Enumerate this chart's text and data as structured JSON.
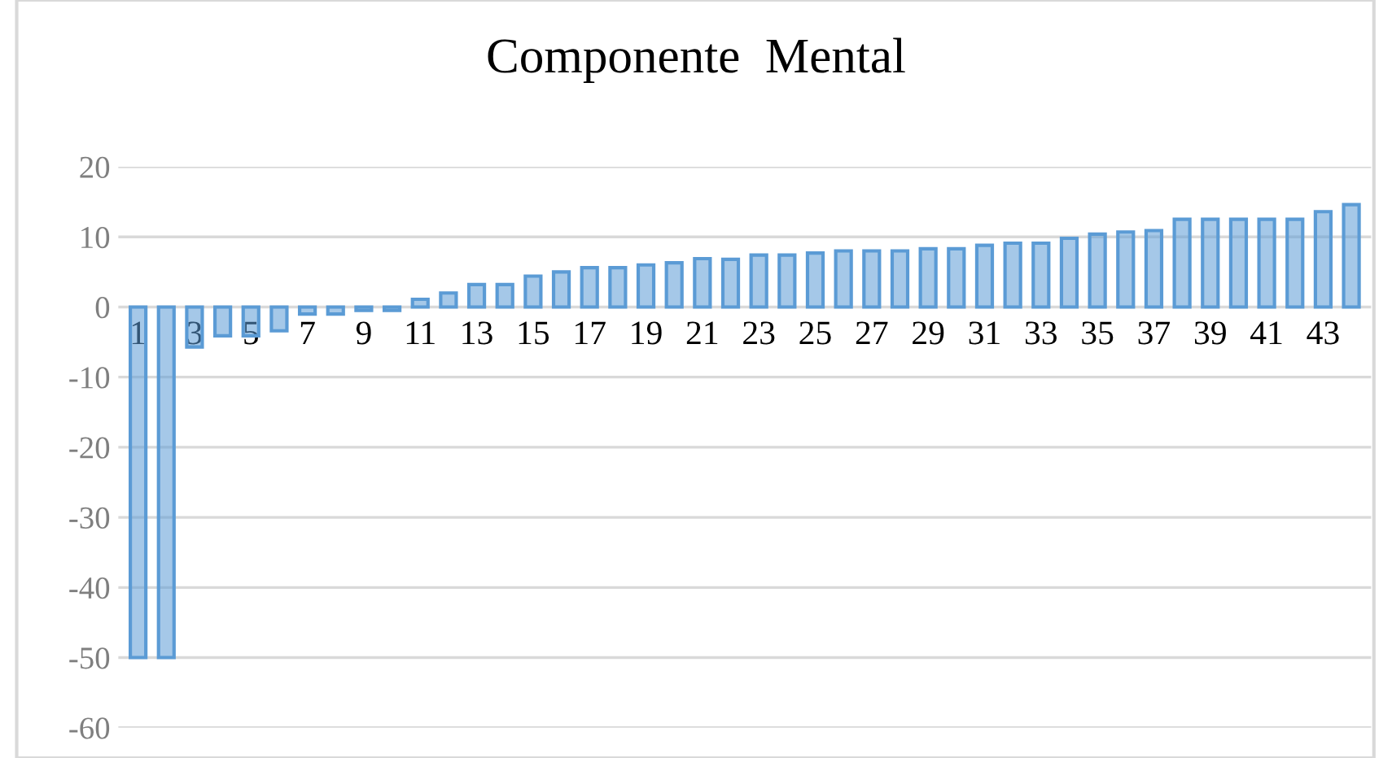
{
  "chart_data": {
    "type": "bar",
    "title": "Componente  Mental",
    "categories": [
      "1",
      null,
      "3",
      null,
      "5",
      null,
      "7",
      null,
      "9",
      null,
      "11",
      null,
      "13",
      null,
      "15",
      null,
      "17",
      null,
      "19",
      null,
      "21",
      null,
      "23",
      null,
      "25",
      null,
      "27",
      null,
      "29",
      null,
      "31",
      null,
      "33",
      null,
      "35",
      null,
      "37",
      null,
      "39",
      null,
      "41",
      null,
      "43",
      null
    ],
    "values": [
      -50,
      -50,
      -5.7,
      -4.1,
      -4.1,
      -3.4,
      -1,
      -1,
      -0.5,
      -0.5,
      1.1,
      2,
      3.2,
      3.2,
      4.4,
      5,
      5.6,
      5.6,
      6,
      6.3,
      6.9,
      6.8,
      7.4,
      7.4,
      7.7,
      8,
      8,
      8,
      8.3,
      8.3,
      8.8,
      9.1,
      9.1,
      9.8,
      10.4,
      10.7,
      10.9,
      12.5,
      12.5,
      12.5,
      12.5,
      12.5,
      13.6,
      14.6
    ],
    "color": "#5b9bd5",
    "ylim": [
      -60,
      20
    ],
    "yticks": [
      -60,
      -50,
      -40,
      -30,
      -20,
      -10,
      0,
      10,
      20
    ],
    "grid": "y"
  }
}
